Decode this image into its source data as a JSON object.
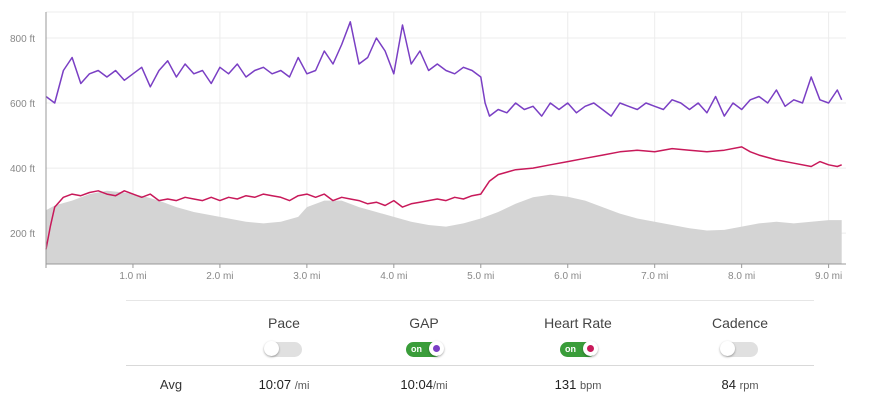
{
  "chart_data": {
    "type": "line",
    "x_unit": "mi",
    "xlim": [
      0,
      9.2
    ],
    "x_ticks": [
      {
        "v": 1,
        "label": "1.0 mi"
      },
      {
        "v": 2,
        "label": "2.0 mi"
      },
      {
        "v": 3,
        "label": "3.0 mi"
      },
      {
        "v": 4,
        "label": "4.0 mi"
      },
      {
        "v": 5,
        "label": "5.0 mi"
      },
      {
        "v": 6,
        "label": "6.0 mi"
      },
      {
        "v": 7,
        "label": "7.0 mi"
      },
      {
        "v": 8,
        "label": "8.0 mi"
      },
      {
        "v": 9,
        "label": "9.0 mi"
      }
    ],
    "y_unit": "ft",
    "ylim": [
      105,
      880
    ],
    "y_ticks": [
      {
        "v": 200,
        "label": "200 ft"
      },
      {
        "v": 400,
        "label": "400 ft"
      },
      {
        "v": 600,
        "label": "600 ft"
      },
      {
        "v": 800,
        "label": "800 ft"
      }
    ],
    "grid": true,
    "series": [
      {
        "key": "gap",
        "color": "#7a3fc4",
        "x": [
          0,
          0.1,
          0.2,
          0.3,
          0.4,
          0.5,
          0.6,
          0.7,
          0.8,
          0.9,
          1.0,
          1.1,
          1.2,
          1.3,
          1.4,
          1.5,
          1.6,
          1.7,
          1.8,
          1.9,
          2.0,
          2.1,
          2.2,
          2.3,
          2.4,
          2.5,
          2.6,
          2.7,
          2.8,
          2.9,
          3.0,
          3.1,
          3.2,
          3.3,
          3.4,
          3.5,
          3.6,
          3.7,
          3.8,
          3.9,
          4.0,
          4.1,
          4.2,
          4.3,
          4.4,
          4.5,
          4.6,
          4.7,
          4.8,
          4.9,
          5.0,
          5.05,
          5.1,
          5.2,
          5.3,
          5.4,
          5.5,
          5.6,
          5.7,
          5.8,
          5.9,
          6.0,
          6.1,
          6.2,
          6.3,
          6.4,
          6.5,
          6.6,
          6.7,
          6.8,
          6.9,
          7.0,
          7.1,
          7.2,
          7.3,
          7.4,
          7.5,
          7.6,
          7.7,
          7.8,
          7.9,
          8.0,
          8.1,
          8.2,
          8.3,
          8.4,
          8.5,
          8.6,
          8.7,
          8.8,
          8.9,
          9.0,
          9.1,
          9.15
        ],
        "values": [
          620,
          600,
          700,
          740,
          660,
          690,
          700,
          680,
          700,
          670,
          690,
          710,
          650,
          700,
          730,
          680,
          720,
          690,
          700,
          660,
          710,
          690,
          720,
          680,
          700,
          710,
          690,
          700,
          680,
          740,
          690,
          700,
          760,
          720,
          780,
          850,
          720,
          740,
          800,
          760,
          690,
          840,
          720,
          760,
          700,
          720,
          700,
          690,
          710,
          700,
          680,
          600,
          560,
          580,
          570,
          600,
          580,
          590,
          560,
          600,
          580,
          600,
          570,
          590,
          600,
          580,
          560,
          600,
          590,
          580,
          600,
          590,
          580,
          610,
          600,
          580,
          600,
          570,
          620,
          560,
          600,
          580,
          610,
          620,
          600,
          640,
          590,
          610,
          600,
          680,
          610,
          600,
          640,
          610
        ]
      },
      {
        "key": "hr",
        "color": "#c8195a",
        "x": [
          0,
          0.05,
          0.1,
          0.2,
          0.3,
          0.4,
          0.5,
          0.6,
          0.7,
          0.8,
          0.9,
          1.0,
          1.1,
          1.2,
          1.3,
          1.4,
          1.5,
          1.6,
          1.7,
          1.8,
          1.9,
          2.0,
          2.1,
          2.2,
          2.3,
          2.4,
          2.5,
          2.6,
          2.7,
          2.8,
          2.9,
          3.0,
          3.1,
          3.2,
          3.3,
          3.4,
          3.5,
          3.6,
          3.7,
          3.8,
          3.9,
          4.0,
          4.1,
          4.2,
          4.3,
          4.4,
          4.5,
          4.6,
          4.7,
          4.8,
          4.9,
          5.0,
          5.1,
          5.2,
          5.4,
          5.6,
          5.8,
          6.0,
          6.2,
          6.4,
          6.6,
          6.8,
          7.0,
          7.2,
          7.4,
          7.6,
          7.8,
          8.0,
          8.1,
          8.2,
          8.4,
          8.6,
          8.8,
          8.9,
          9.0,
          9.1,
          9.15
        ],
        "values": [
          150,
          220,
          280,
          310,
          320,
          315,
          325,
          330,
          320,
          315,
          330,
          320,
          310,
          320,
          300,
          305,
          300,
          310,
          305,
          300,
          310,
          300,
          310,
          305,
          315,
          310,
          320,
          315,
          310,
          300,
          315,
          320,
          310,
          320,
          300,
          310,
          305,
          300,
          290,
          295,
          285,
          300,
          280,
          290,
          295,
          300,
          305,
          300,
          310,
          305,
          315,
          320,
          360,
          380,
          395,
          400,
          410,
          420,
          430,
          440,
          450,
          455,
          450,
          460,
          455,
          450,
          455,
          465,
          450,
          440,
          425,
          415,
          405,
          420,
          410,
          405,
          410
        ]
      }
    ],
    "area": {
      "key": "elevation",
      "color": "#d4d4d4",
      "x": [
        0,
        0.1,
        0.3,
        0.5,
        0.7,
        0.9,
        1.1,
        1.3,
        1.5,
        1.7,
        1.9,
        2.1,
        2.3,
        2.5,
        2.7,
        2.9,
        3.0,
        3.2,
        3.4,
        3.6,
        3.8,
        4.0,
        4.2,
        4.4,
        4.6,
        4.8,
        5.0,
        5.2,
        5.4,
        5.6,
        5.8,
        6.0,
        6.2,
        6.4,
        6.6,
        6.8,
        7.0,
        7.2,
        7.4,
        7.6,
        7.8,
        8.0,
        8.2,
        8.4,
        8.6,
        8.8,
        9.0,
        9.15
      ],
      "values": [
        270,
        285,
        300,
        320,
        330,
        325,
        315,
        300,
        280,
        265,
        255,
        245,
        235,
        230,
        235,
        250,
        280,
        300,
        300,
        280,
        265,
        250,
        235,
        225,
        220,
        230,
        245,
        265,
        290,
        310,
        318,
        312,
        300,
        280,
        260,
        245,
        235,
        225,
        215,
        208,
        210,
        220,
        230,
        235,
        230,
        235,
        240,
        240
      ]
    }
  },
  "controls": {
    "pace_title": "Pace",
    "gap_title": "GAP",
    "hr_title": "Heart Rate",
    "cadence_title": "Cadence",
    "on_text": "on",
    "gap_on": true,
    "hr_on": true,
    "gap_color": "#7a3fc4",
    "hr_color": "#c8195a"
  },
  "avg": {
    "label": "Avg",
    "pace_value": "10:07",
    "pace_unit": "/mi",
    "gap_value": "10:04",
    "gap_unit": "/mi",
    "hr_value": "131",
    "hr_unit": "bpm",
    "cadence_value": "84",
    "cadence_unit": "rpm"
  }
}
